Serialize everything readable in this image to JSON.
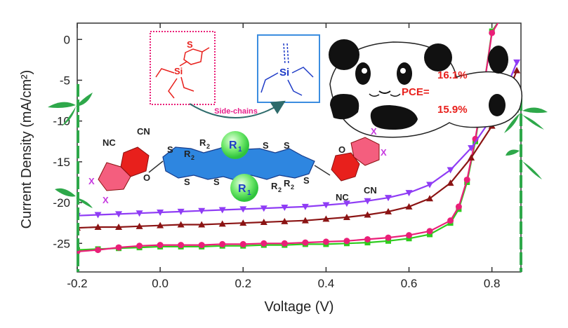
{
  "chart_data": {
    "type": "line",
    "xlabel": "Voltage (V)",
    "ylabel": "Current Density (mA/cm²)",
    "xlim": [
      -0.2,
      0.87
    ],
    "ylim": [
      -28.5,
      2
    ],
    "x_ticks": [
      "-0.2",
      "0.0",
      "0.2",
      "0.4",
      "0.6",
      "0.8"
    ],
    "y_ticks": [
      "0",
      "-5",
      "-10",
      "-15",
      "-20",
      "-25"
    ],
    "x_tick_values": [
      -0.2,
      0.0,
      0.2,
      0.4,
      0.6,
      0.8
    ],
    "y_tick_values": [
      0,
      -5,
      -10,
      -15,
      -20,
      -25
    ],
    "grid": false,
    "series": [
      {
        "color": "#2ecc1e",
        "marker": "square",
        "x": [
          -0.2,
          -0.15,
          -0.1,
          -0.05,
          0.0,
          0.05,
          0.1,
          0.15,
          0.2,
          0.25,
          0.3,
          0.35,
          0.4,
          0.45,
          0.5,
          0.55,
          0.6,
          0.65,
          0.7,
          0.72,
          0.74,
          0.76,
          0.78,
          0.8,
          0.82,
          0.84,
          0.86
        ],
        "y": [
          -25.8,
          -25.7,
          -25.6,
          -25.5,
          -25.4,
          -25.4,
          -25.4,
          -25.3,
          -25.3,
          -25.2,
          -25.2,
          -25.1,
          -25.1,
          -25.0,
          -24.9,
          -24.7,
          -24.4,
          -23.9,
          -22.5,
          -20.8,
          -17.5,
          -12.5,
          -6.0,
          1.0,
          2.5,
          2.5,
          2.5
        ]
      },
      {
        "color": "#ea1f78",
        "marker": "circle",
        "x": [
          -0.2,
          -0.15,
          -0.1,
          -0.05,
          0.0,
          0.05,
          0.1,
          0.15,
          0.2,
          0.25,
          0.3,
          0.35,
          0.4,
          0.45,
          0.5,
          0.55,
          0.6,
          0.65,
          0.7,
          0.72,
          0.74,
          0.76,
          0.78,
          0.8,
          0.82,
          0.84,
          0.86
        ],
        "y": [
          -26.0,
          -25.8,
          -25.5,
          -25.3,
          -25.2,
          -25.2,
          -25.2,
          -25.1,
          -25.1,
          -25.0,
          -25.0,
          -24.9,
          -24.8,
          -24.7,
          -24.5,
          -24.3,
          -24.0,
          -23.5,
          -22.2,
          -20.5,
          -17.2,
          -12.2,
          -6.0,
          0.8,
          2.5,
          2.5,
          2.5
        ]
      },
      {
        "color": "#8b1414",
        "marker": "triangle-up",
        "x": [
          -0.2,
          -0.15,
          -0.1,
          -0.05,
          0.0,
          0.05,
          0.1,
          0.15,
          0.2,
          0.25,
          0.3,
          0.35,
          0.4,
          0.45,
          0.5,
          0.55,
          0.6,
          0.65,
          0.7,
          0.75,
          0.8,
          0.82,
          0.84,
          0.86
        ],
        "y": [
          -23.1,
          -23.0,
          -23.0,
          -22.9,
          -22.8,
          -22.7,
          -22.7,
          -22.6,
          -22.5,
          -22.4,
          -22.3,
          -22.2,
          -22.0,
          -21.8,
          -21.5,
          -21.1,
          -20.5,
          -19.5,
          -17.6,
          -14.5,
          -10.6,
          -8.6,
          -6.4,
          -3.8
        ]
      },
      {
        "color": "#8f3cf5",
        "marker": "triangle-down",
        "x": [
          -0.2,
          -0.15,
          -0.1,
          -0.05,
          0.0,
          0.05,
          0.1,
          0.15,
          0.2,
          0.25,
          0.3,
          0.35,
          0.4,
          0.45,
          0.5,
          0.55,
          0.6,
          0.65,
          0.7,
          0.75,
          0.8,
          0.82,
          0.84,
          0.86
        ],
        "y": [
          -21.6,
          -21.5,
          -21.4,
          -21.3,
          -21.2,
          -21.1,
          -21.0,
          -20.9,
          -20.8,
          -20.7,
          -20.6,
          -20.5,
          -20.3,
          -20.1,
          -19.8,
          -19.4,
          -18.8,
          -17.8,
          -16.0,
          -13.3,
          -9.6,
          -7.4,
          -5.3,
          -2.8
        ]
      }
    ],
    "annotations": {
      "side_chains": "Side-chains",
      "pce_label": "PCE=",
      "pce_top": "16.1%",
      "pce_bottom": "15.9%",
      "r1": "R",
      "r1_sub": "1",
      "r2": "R",
      "r2_sub": "2",
      "si": "Si",
      "s": "S",
      "o": "O",
      "x": "X",
      "cn": "CN",
      "nc": "NC"
    }
  }
}
